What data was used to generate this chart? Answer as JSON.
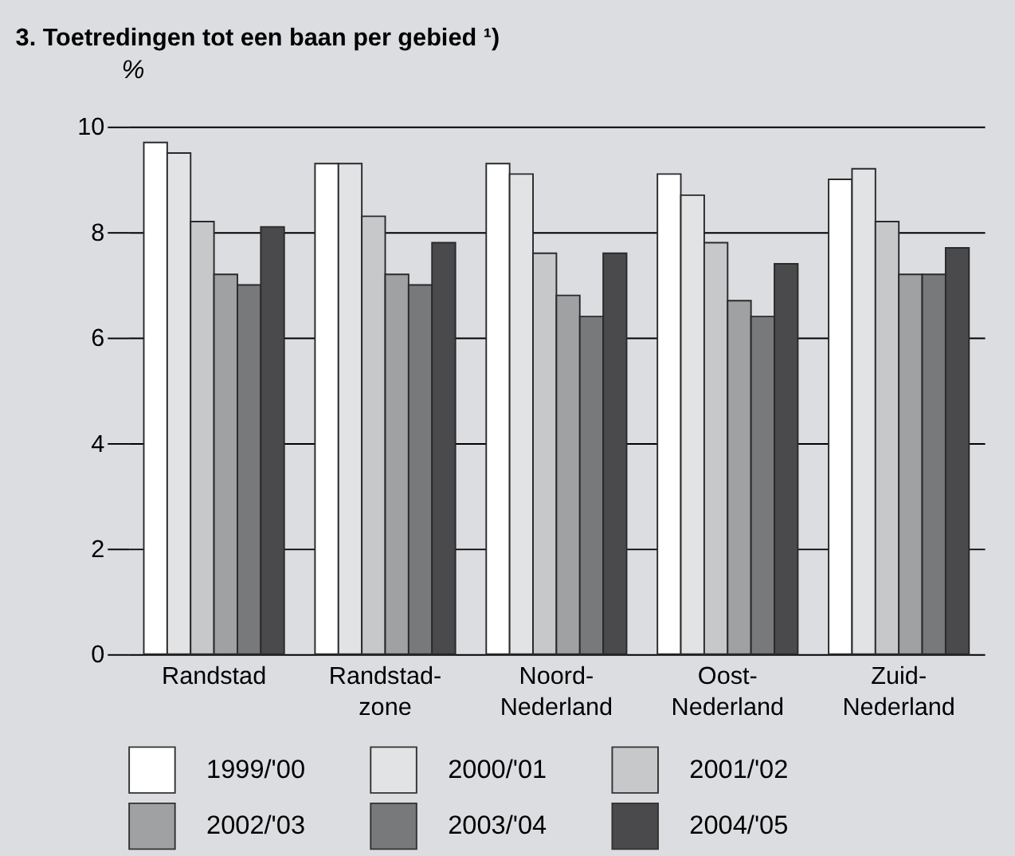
{
  "chart_data": {
    "type": "bar",
    "title": "3. Toetredingen tot een baan per gebied ¹)",
    "ylabel": "%",
    "categories": [
      "Randstad",
      "Randstad-zone",
      "Noord-Nederland",
      "Oost-Nederland",
      "Zuid-Nederland"
    ],
    "series": [
      {
        "name": "1999/'00",
        "color": "#ffffff",
        "values": [
          9.7,
          9.3,
          9.3,
          9.1,
          9.0
        ]
      },
      {
        "name": "2000/'01",
        "color": "#e2e3e5",
        "values": [
          9.5,
          9.3,
          9.1,
          8.7,
          9.2
        ]
      },
      {
        "name": "2001/'02",
        "color": "#c7c8ca",
        "values": [
          8.2,
          8.3,
          7.6,
          7.8,
          8.2
        ]
      },
      {
        "name": "2002/'03",
        "color": "#a0a1a3",
        "values": [
          7.2,
          7.2,
          6.8,
          6.7,
          7.2
        ]
      },
      {
        "name": "2003/'04",
        "color": "#78797b",
        "values": [
          7.0,
          7.0,
          6.4,
          6.4,
          7.2
        ]
      },
      {
        "name": "2004/'05",
        "color": "#4a4a4c",
        "values": [
          8.1,
          7.8,
          7.6,
          7.4,
          7.7
        ]
      }
    ],
    "ylim": [
      0,
      10
    ],
    "yticks": [
      0,
      2,
      4,
      6,
      8,
      10
    ],
    "grid": "y",
    "legend": "bottom"
  }
}
